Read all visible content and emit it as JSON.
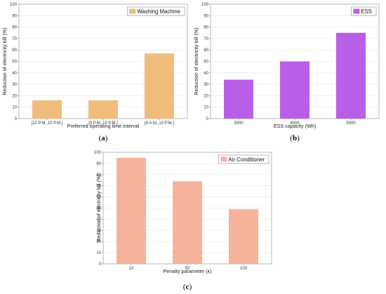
{
  "chart_data": [
    {
      "type": "bar",
      "caption_open": "(",
      "caption_letter": "a",
      "caption_close": ")",
      "legend": "Washing Machine",
      "legend_position": "top-right",
      "color": "#f0bd7c",
      "xlabel": "Preferred operating time interval",
      "ylabel": "Reduction of electricity bill (%)",
      "ylim": [
        0,
        100
      ],
      "yticks": [
        0,
        10,
        20,
        30,
        40,
        50,
        60,
        70,
        80,
        90,
        100
      ],
      "grid": true,
      "categories": [
        "[12 P.M.,10 P.M.]",
        "[5 P.M.,10 P.M.]",
        "[6 A.M.,10 P.M.]"
      ],
      "values": [
        16,
        16,
        57
      ]
    },
    {
      "type": "bar",
      "caption_open": "(",
      "caption_letter": "b",
      "caption_close": ")",
      "legend": "ESS",
      "legend_position": "top-right",
      "color": "#b95ee8",
      "xlabel": "ESS capacity (Wh)",
      "ylabel": "Reduction of electricity bill (%)",
      "ylim": [
        0,
        100
      ],
      "yticks": [
        0,
        10,
        20,
        30,
        40,
        50,
        60,
        70,
        80,
        90,
        100
      ],
      "grid": true,
      "categories": [
        "3000",
        "4000",
        "5000"
      ],
      "values": [
        34,
        50,
        75
      ]
    },
    {
      "type": "bar",
      "caption_open": "(",
      "caption_letter": "c",
      "caption_close": ")",
      "legend": "Air Conditioner",
      "legend_position": "top-right",
      "color": "#f7b29b",
      "xlabel": "Penalty parameter (κ)",
      "ylabel": "Reduction of electricity bill (%)",
      "ylim": [
        0,
        100
      ],
      "yticks": [
        0,
        10,
        20,
        30,
        40,
        50,
        60,
        70,
        80,
        90,
        100
      ],
      "grid": true,
      "categories": [
        "10",
        "50",
        "100"
      ],
      "values": [
        95,
        74,
        49
      ]
    }
  ]
}
